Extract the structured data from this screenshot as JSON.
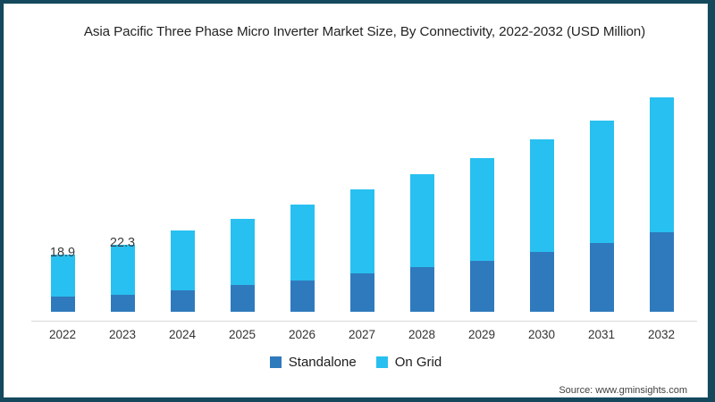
{
  "window": {
    "frame_color": "#14485C",
    "panel_color": "#ffffff"
  },
  "chart_data": {
    "type": "bar",
    "stacked": true,
    "title": "Asia Pacific Three Phase Micro Inverter Market Size, By Connectivity, 2022-2032 (USD Million)",
    "xlabel": "",
    "ylabel": "",
    "grid": false,
    "legend_position": "bottom",
    "ylim": [
      0,
      75
    ],
    "categories": [
      "2022",
      "2023",
      "2024",
      "2025",
      "2026",
      "2027",
      "2028",
      "2029",
      "2030",
      "2031",
      "2032"
    ],
    "series": [
      {
        "name": "Standalone",
        "color": "#2F7ABD",
        "values": [
          4.8,
          5.6,
          7.0,
          8.7,
          10.4,
          12.5,
          14.7,
          16.9,
          19.7,
          22.7,
          26.3
        ]
      },
      {
        "name": "On Grid",
        "color": "#28C0F0",
        "values": [
          14.1,
          16.7,
          20.0,
          22.1,
          25.2,
          28.1,
          31.0,
          34.2,
          37.5,
          40.7,
          44.8
        ]
      }
    ],
    "totals": [
      18.9,
      22.3,
      27.0,
      30.8,
      35.6,
      40.6,
      45.7,
      51.1,
      57.2,
      63.4,
      71.1
    ],
    "data_labels": [
      "18.9",
      "22.3",
      null,
      null,
      null,
      null,
      null,
      null,
      null,
      null,
      null
    ]
  },
  "source": {
    "text": "Source: www.gminsights.com"
  }
}
